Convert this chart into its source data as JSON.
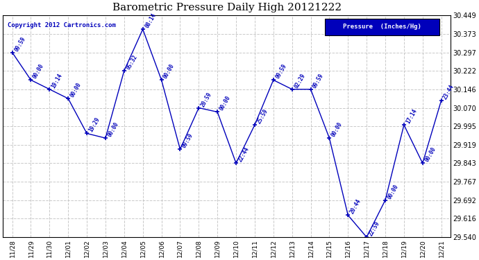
{
  "title": "Barometric Pressure Daily High 20121222",
  "copyright": "Copyright 2012 Cartronics.com",
  "legend_label": "Pressure  (Inches/Hg)",
  "dates": [
    "11/28",
    "11/29",
    "11/30",
    "12/01",
    "12/02",
    "12/03",
    "12/04",
    "12/05",
    "12/06",
    "12/07",
    "12/08",
    "12/09",
    "12/10",
    "12/11",
    "12/12",
    "12/13",
    "12/14",
    "12/15",
    "12/16",
    "12/17",
    "12/18",
    "12/19",
    "12/20",
    "12/21"
  ],
  "values": [
    30.297,
    30.184,
    30.146,
    30.108,
    29.965,
    29.946,
    30.222,
    30.392,
    30.184,
    29.9,
    30.07,
    30.053,
    29.843,
    30.0,
    30.184,
    30.146,
    30.146,
    29.946,
    29.63,
    29.54,
    29.692,
    30.0,
    29.843,
    30.1
  ],
  "times": [
    "09:59",
    "00:00",
    "19:14",
    "00:00",
    "19:29",
    "00:00",
    "05:32",
    "08:14",
    "00:00",
    "09:59",
    "20:59",
    "00:00",
    "22:44",
    "25:59",
    "09:59",
    "02:29",
    "09:59",
    "00:00",
    "20:44",
    "22:59",
    "00:00",
    "17:14",
    "00:00",
    "23:44"
  ],
  "ylim": [
    29.54,
    30.449
  ],
  "yticks": [
    29.54,
    29.616,
    29.692,
    29.767,
    29.843,
    29.919,
    29.995,
    30.07,
    30.146,
    30.222,
    30.297,
    30.373,
    30.449
  ],
  "line_color": "#0000BB",
  "marker_color": "#0000BB",
  "bg_color": "#FFFFFF",
  "grid_color": "#BBBBBB",
  "text_color": "#0000BB",
  "title_color": "#000000",
  "legend_bg": "#0000BB",
  "legend_text_color": "#FFFFFF"
}
